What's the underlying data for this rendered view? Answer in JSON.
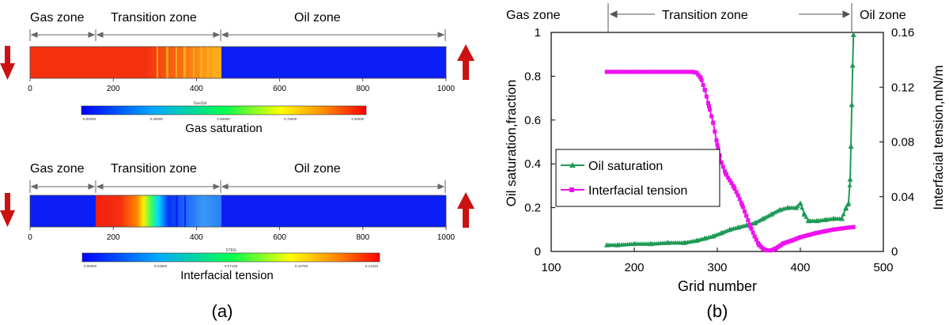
{
  "panel_a": {
    "panel_label": "(a)",
    "top_bar": {
      "zones": [
        "Gas zone",
        "Transition zone",
        "Oil zone"
      ],
      "axis_ticks": [
        "0",
        "200",
        "400",
        "600",
        "800",
        "1000"
      ],
      "colorbar": {
        "title": "GasSat",
        "caption": "Gas saturation",
        "tick_labels": [
          "0.00000",
          "0.25000",
          "0.50000",
          "0.75000",
          "1.00000"
        ]
      }
    },
    "bottom_bar": {
      "zones": [
        "Gas zone",
        "Transition zone",
        "Oil zone"
      ],
      "axis_ticks": [
        "0",
        "200",
        "400",
        "600",
        "800",
        "1000"
      ],
      "colorbar": {
        "title": "STEN",
        "caption": "Interfacial tension",
        "tick_labels": [
          "0.00000",
          "0.03583",
          "0.07166",
          "0.10750",
          "0.14333"
        ]
      }
    },
    "colors": {
      "down_arrow": "#cc1111",
      "up_arrow": "#cc1111",
      "oil_blue": "#0a1ef5",
      "gas_red": "#f5300f"
    }
  },
  "panel_b": {
    "panel_label": "(b)",
    "zone_labels": [
      "Gas zone",
      "Transition zone",
      "Oil zone"
    ]
  },
  "chart_data": {
    "type": "line",
    "title": "",
    "xlabel": "Grid number",
    "ylabel": "Oil saturation,fraction",
    "y2label": "Interfacial tension,mN/m",
    "xlim": [
      100,
      500
    ],
    "ylim": [
      0,
      1
    ],
    "y2lim": [
      0,
      0.16
    ],
    "x_ticks": [
      "100",
      "200",
      "300",
      "400",
      "500"
    ],
    "y_ticks": [
      "0",
      "0.2",
      "0.4",
      "0.6",
      "0.8",
      "1"
    ],
    "y2_ticks": [
      "0",
      "0.04",
      "0.08",
      "0.12",
      "0.16"
    ],
    "legend_position": "bottom-left",
    "grid": false,
    "series": [
      {
        "name": "Oil saturation",
        "axis": "left",
        "color": "#1f9a55",
        "marker": "triangle",
        "x": [
          167,
          180,
          200,
          220,
          240,
          260,
          275,
          285,
          295,
          305,
          315,
          325,
          335,
          345,
          355,
          365,
          375,
          385,
          395,
          400,
          405,
          410,
          420,
          430,
          440,
          450,
          455,
          458,
          460,
          461,
          462,
          463,
          464
        ],
        "y": [
          0.03,
          0.03,
          0.035,
          0.035,
          0.04,
          0.04,
          0.05,
          0.06,
          0.07,
          0.085,
          0.1,
          0.11,
          0.12,
          0.13,
          0.15,
          0.17,
          0.19,
          0.2,
          0.2,
          0.22,
          0.17,
          0.14,
          0.14,
          0.145,
          0.15,
          0.15,
          0.2,
          0.22,
          0.33,
          0.48,
          0.67,
          0.85,
          0.99
        ]
      },
      {
        "name": "Interfacial tension",
        "axis": "right",
        "color": "#ee11ee",
        "marker": "square",
        "x": [
          167,
          180,
          200,
          220,
          240,
          260,
          270,
          275,
          280,
          285,
          290,
          295,
          300,
          305,
          310,
          315,
          320,
          325,
          330,
          335,
          340,
          345,
          350,
          355,
          360,
          365,
          370,
          375,
          380,
          390,
          400,
          410,
          420,
          430,
          440,
          450,
          460,
          464
        ],
        "y": [
          0.1312,
          0.1312,
          0.1312,
          0.1312,
          0.1312,
          0.1312,
          0.1312,
          0.1305,
          0.127,
          0.118,
          0.106,
          0.094,
          0.078,
          0.065,
          0.057,
          0.052,
          0.047,
          0.041,
          0.034,
          0.026,
          0.018,
          0.011,
          0.005,
          0.002,
          0.0008,
          0.0008,
          0.002,
          0.004,
          0.006,
          0.008,
          0.0104,
          0.012,
          0.0136,
          0.0148,
          0.016,
          0.0168,
          0.0176,
          0.0178
        ]
      }
    ]
  }
}
